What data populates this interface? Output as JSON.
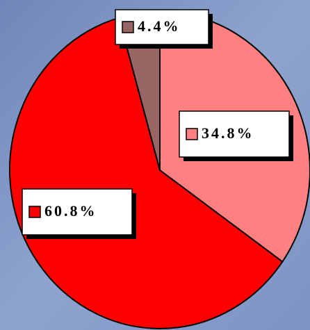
{
  "chart_data": {
    "type": "pie",
    "values": [
      34.8,
      60.8,
      4.4
    ],
    "value_labels": [
      "34.8%",
      "60.8%",
      "4.4%"
    ],
    "colors": [
      "#ff8080",
      "#ff0000",
      "#996666"
    ]
  }
}
